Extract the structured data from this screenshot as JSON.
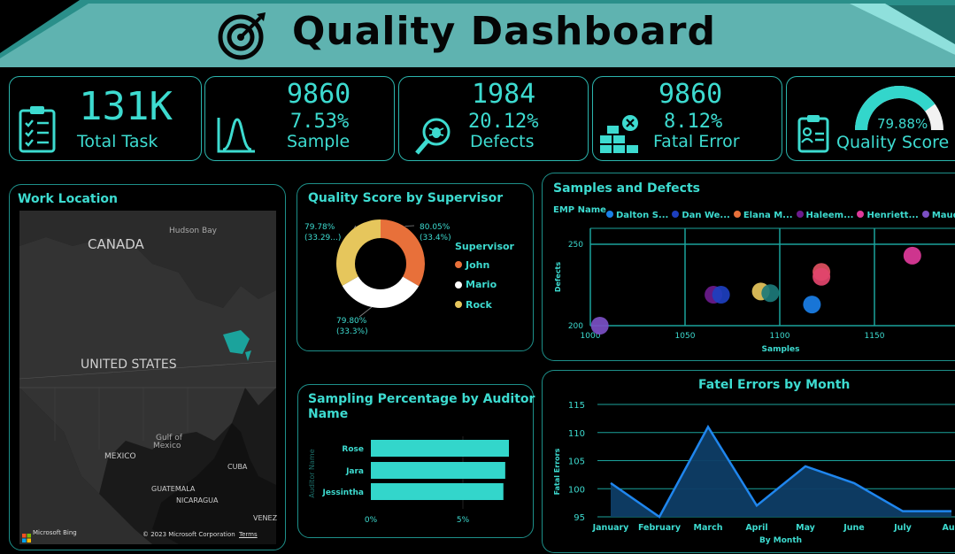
{
  "header": {
    "title": "Quality Dashboard"
  },
  "kpis": {
    "total_task": {
      "value": "131K",
      "label": "Total Task"
    },
    "sample": {
      "value": "9860",
      "pct": "7.53%",
      "label": "Sample"
    },
    "defects": {
      "value": "1984",
      "pct": "20.12%",
      "label": "Defects"
    },
    "fatal_error": {
      "value": "9860",
      "pct": "8.12%",
      "label": "Fatal Error"
    },
    "quality_score": {
      "pct": "79.88%",
      "label": "Quality Score",
      "gauge_fraction": 0.7988
    }
  },
  "map": {
    "title": "Work Location",
    "labels": {
      "canada": "CANADA",
      "hudson_bay": "Hudson Bay",
      "us": "UNITED STATES",
      "gulf1": "Gulf of",
      "gulf2": "Mexico",
      "mexico": "MEXICO",
      "cuba": "CUBA",
      "guatemala": "GUATEMALA",
      "nicaragua": "NICARAGUA",
      "venez": "VENEZ"
    },
    "bing": "Microsoft Bing",
    "copyright": "© 2023 Microsoft Corporation",
    "terms": "Terms"
  },
  "donut": {
    "title": "Quality Score by Supervisor",
    "legend_title": "Supervisor",
    "slices": [
      {
        "name": "John",
        "value": 80.05,
        "share": "33.4%",
        "color": "#e8703a",
        "label1": "80.05%",
        "label2": "(33.4%)"
      },
      {
        "name": "Mario",
        "value": 79.8,
        "share": "33.3%",
        "color": "#ffffff",
        "label1": "79.80%",
        "label2": "(33.3%)"
      },
      {
        "name": "Rock",
        "value": 79.78,
        "share": "33.29...",
        "color": "#e6c65c",
        "label1": "79.78%",
        "label2": "(33.29...)"
      }
    ]
  },
  "bars": {
    "title_line1": "Sampling Percentage by Auditor",
    "title_line2": "Name",
    "ylabel": "Auditor Name",
    "ticks": [
      "0%",
      "5%"
    ]
  },
  "scatter": {
    "title": "Samples and Defects",
    "legend_title": "EMP Name",
    "legend": [
      {
        "name": "Dalton S...",
        "color": "#1a7fe8"
      },
      {
        "name": "Dan We...",
        "color": "#1d3fbf"
      },
      {
        "name": "Elana M...",
        "color": "#e8703a"
      },
      {
        "name": "Haleem...",
        "color": "#6b1b8c"
      },
      {
        "name": "Henriett...",
        "color": "#e03a9a"
      },
      {
        "name": "Maude ...",
        "color": "#7b4fc4"
      }
    ],
    "xlabel": "Samples",
    "ylabel": "Defects",
    "xticks": [
      "1000",
      "1050",
      "1100",
      "1150"
    ],
    "yticks": [
      "250",
      "200"
    ]
  },
  "line": {
    "title": "Fatel Errors by Month",
    "xlabel": "By Month",
    "ylabel": "Fatal Errors",
    "yticks": [
      "115",
      "110",
      "105",
      "100",
      "95"
    ],
    "xticks": [
      "January",
      "February",
      "March",
      "April",
      "May",
      "June",
      "July",
      "Aug"
    ]
  },
  "chart_data": [
    {
      "type": "pie",
      "title": "Quality Score by Supervisor",
      "categories": [
        "John",
        "Mario",
        "Rock"
      ],
      "values": [
        80.05,
        79.8,
        79.78
      ]
    },
    {
      "type": "bar",
      "title": "Sampling Percentage by Auditor Name",
      "categories": [
        "Rose",
        "Jara",
        "Jessintha"
      ],
      "values": [
        7.5,
        7.3,
        7.2
      ],
      "xlim": [
        0,
        7.6
      ],
      "xlabel": "",
      "ylabel": "Auditor Name"
    },
    {
      "type": "scatter",
      "title": "Samples and Defects",
      "xlabel": "Samples",
      "ylabel": "Defects",
      "xlim": [
        1000,
        1190
      ],
      "ylim": [
        200,
        258
      ],
      "points": [
        {
          "x": 1005,
          "y": 200,
          "color": "#7b4fc4"
        },
        {
          "x": 1065,
          "y": 219,
          "color": "#6b1b8c"
        },
        {
          "x": 1069,
          "y": 219,
          "color": "#1d3fbf"
        },
        {
          "x": 1090,
          "y": 221,
          "color": "#e6c65c"
        },
        {
          "x": 1095,
          "y": 220,
          "color": "#1c7a7a"
        },
        {
          "x": 1117,
          "y": 213,
          "color": "#1a7fe8"
        },
        {
          "x": 1122,
          "y": 233,
          "color": "#e05060"
        },
        {
          "x": 1122,
          "y": 230,
          "color": "#e2446c"
        },
        {
          "x": 1170,
          "y": 243,
          "color": "#e03a9a"
        }
      ]
    },
    {
      "type": "area",
      "title": "Fatel Errors by Month",
      "categories": [
        "January",
        "February",
        "March",
        "April",
        "May",
        "June",
        "July",
        "Aug"
      ],
      "values": [
        101,
        95,
        111,
        97,
        104,
        101,
        96,
        96
      ],
      "ylim": [
        95,
        115
      ],
      "xlabel": "By Month",
      "ylabel": "Fatal Errors"
    }
  ]
}
